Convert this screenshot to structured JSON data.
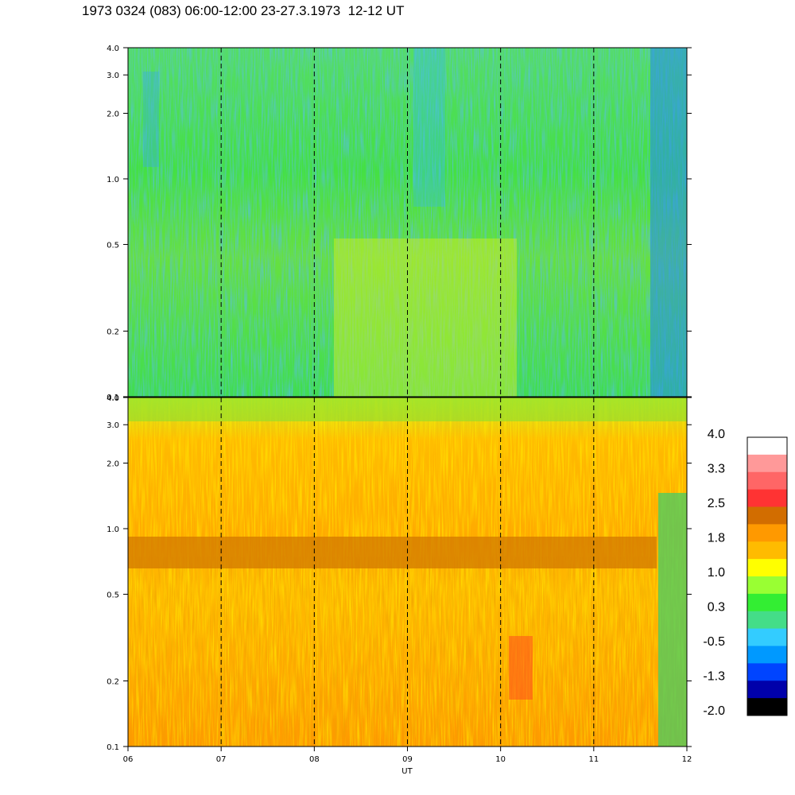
{
  "title": "1973 0324 (083) 06:00-12:00 23-27.3.1973  12-12 UT",
  "chart_data": {
    "type": "heatmap",
    "xlabel": "UT",
    "x_ticks": [
      "06",
      "07",
      "08",
      "09",
      "10",
      "11",
      "12"
    ],
    "x_range": [
      6,
      12
    ],
    "y_scale": "log",
    "y_range": [
      0.1,
      4.0
    ],
    "y_ticks": [
      "0.1",
      "0.2",
      "0.5",
      "1.0",
      "2.0",
      "3.0",
      "4.0"
    ],
    "y_tick_values": [
      0.1,
      0.2,
      0.5,
      1.0,
      2.0,
      3.0,
      4.0
    ],
    "vertical_dashed_lines_at": [
      7,
      8,
      9,
      10,
      11
    ],
    "panels": [
      {
        "name": "upper",
        "dominant_level_range": [
          -0.5,
          1.0
        ],
        "dominant_colors": [
          "green",
          "cyan",
          "yellow"
        ]
      },
      {
        "name": "lower",
        "dominant_level_range": [
          1.0,
          2.5
        ],
        "dominant_colors": [
          "orange",
          "yellow",
          "dark-orange"
        ],
        "band_near_y": 0.8
      }
    ],
    "colorbar": {
      "range": [
        -2.0,
        4.0
      ],
      "labels": [
        "4.0",
        "3.3",
        "2.5",
        "1.8",
        "1.0",
        "0.3",
        "-0.5",
        "-1.3",
        "-2.0"
      ],
      "colors_top_to_bottom": [
        "#ffffff",
        "#ff9999",
        "#ff6666",
        "#ff3333",
        "#d26d00",
        "#ff9900",
        "#ffbb00",
        "#ffff00",
        "#99ff33",
        "#33ee33",
        "#44dd88",
        "#33ccff",
        "#0099ff",
        "#0044ff",
        "#0000aa",
        "#000000"
      ]
    }
  }
}
